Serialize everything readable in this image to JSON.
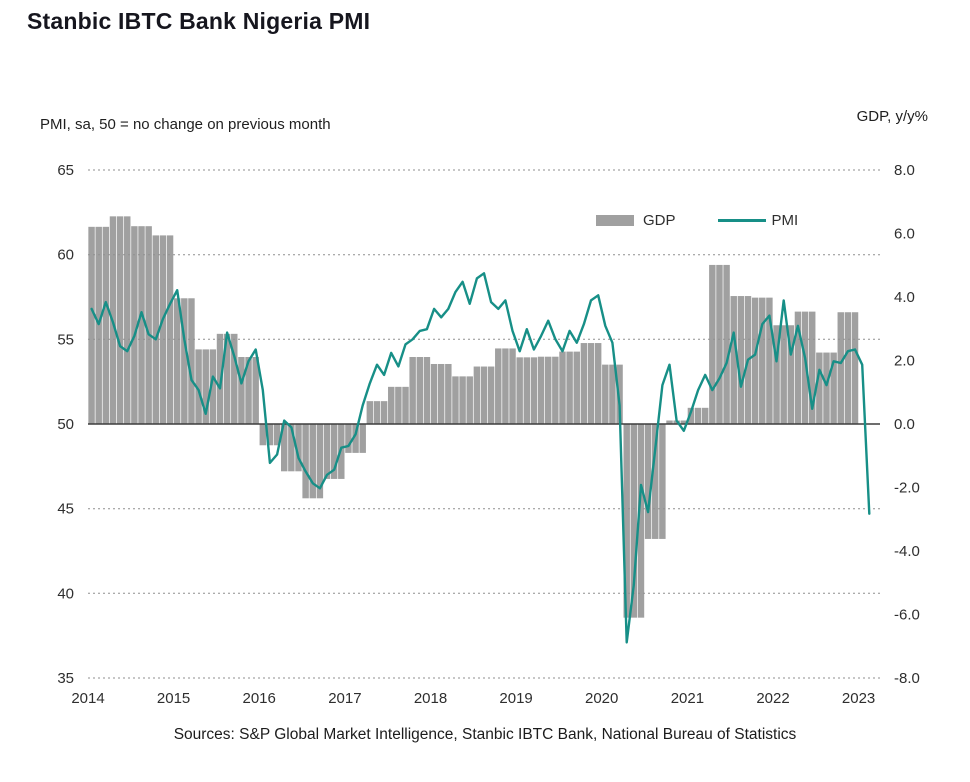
{
  "title": "Stanbic IBTC Bank Nigeria PMI",
  "sources": "Sources: S&P Global Market Intelligence, Stanbic IBTC Bank, National Bureau of Statistics",
  "colors": {
    "bar": "#a0a0a0",
    "line": "#178f87",
    "grid": "#8f8f8f",
    "zero_line": "#3d3d3d",
    "title": "#16161e",
    "text": "#2e2e2e"
  },
  "chart_data": {
    "type": "combo",
    "title": "Stanbic IBTC Bank Nigeria PMI",
    "grid": "dashed horizontal",
    "legend_position": "top-right-inside",
    "baseline": {
      "left": 50,
      "right": 0
    },
    "left_axis": {
      "title": "PMI, sa, 50 = no change on previous month",
      "min": 35,
      "max": 65,
      "ticks": [
        65,
        60,
        55,
        50,
        45,
        40,
        35
      ]
    },
    "right_axis": {
      "title": "GDP, y/y%",
      "min": -8,
      "max": 8,
      "ticks": [
        "8.0",
        "6.0",
        "4.0",
        "2.0",
        "0.0",
        "-2.0",
        "-4.0",
        "-6.0",
        "-8.0"
      ]
    },
    "x_axis": {
      "min": 2014,
      "max": 2023.25,
      "ticks": [
        2014,
        2015,
        2016,
        2017,
        2018,
        2019,
        2020,
        2021,
        2022,
        2023
      ]
    },
    "series": [
      {
        "name": "GDP",
        "type": "bar",
        "axis": "right",
        "frequency": "quarterly",
        "start": "2014-Q1",
        "values": [
          6.21,
          6.54,
          6.23,
          5.94,
          3.96,
          2.35,
          2.84,
          2.11,
          -0.67,
          -1.49,
          -2.34,
          -1.73,
          -0.91,
          0.72,
          1.17,
          2.11,
          1.89,
          1.5,
          1.81,
          2.38,
          2.1,
          2.12,
          2.28,
          2.55,
          1.87,
          -6.1,
          -3.62,
          0.11,
          0.51,
          5.01,
          4.03,
          3.98,
          3.11,
          3.54,
          2.25,
          3.52
        ]
      },
      {
        "name": "PMI",
        "type": "line",
        "axis": "left",
        "frequency": "monthly",
        "start": "2014-01",
        "values": [
          56.8,
          55.9,
          57.2,
          56.0,
          54.6,
          54.3,
          55.2,
          56.6,
          55.3,
          55.0,
          56.2,
          57.1,
          57.9,
          55.0,
          52.6,
          52.0,
          50.6,
          52.8,
          52.1,
          55.4,
          54.0,
          52.4,
          53.7,
          54.4,
          52.0,
          47.7,
          48.2,
          50.2,
          49.8,
          48.0,
          47.2,
          46.5,
          46.2,
          47.0,
          47.3,
          48.6,
          48.7,
          49.4,
          51.1,
          52.4,
          53.5,
          52.9,
          54.2,
          53.4,
          54.7,
          55.0,
          55.5,
          55.6,
          56.8,
          56.3,
          56.8,
          57.8,
          58.4,
          57.1,
          58.6,
          58.9,
          57.2,
          56.8,
          57.3,
          55.5,
          54.3,
          55.6,
          54.4,
          55.2,
          56.1,
          55.0,
          54.3,
          55.5,
          54.8,
          55.9,
          57.3,
          57.6,
          55.8,
          54.8,
          51.1,
          37.1,
          40.5,
          46.4,
          44.8,
          48.5,
          52.3,
          53.5,
          50.2,
          49.6,
          50.7,
          52.0,
          52.9,
          52.0,
          52.7,
          53.6,
          55.4,
          52.2,
          53.8,
          54.1,
          55.9,
          56.4,
          53.7,
          57.3,
          54.1,
          55.8,
          53.9,
          50.9,
          53.2,
          52.3,
          53.7,
          53.6,
          54.3,
          54.4,
          53.5,
          44.7
        ]
      }
    ]
  }
}
